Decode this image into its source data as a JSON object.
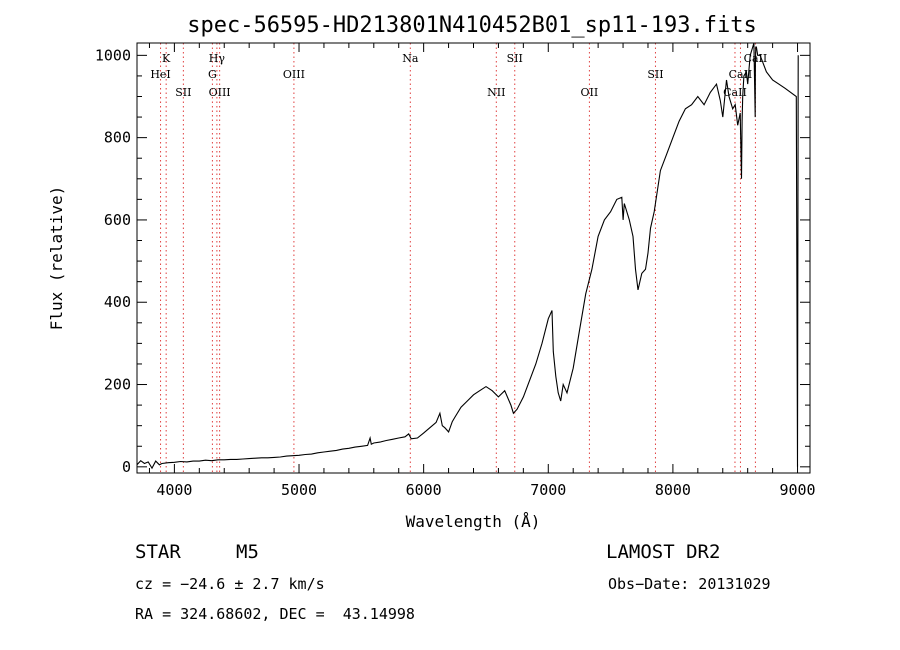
{
  "chart_data": {
    "type": "line",
    "title": "spec-56595-HD213801N410452B01_sp11-193.fits",
    "xlabel": "Wavelength (Å)",
    "ylabel": "Flux (relative)",
    "xlim": [
      3700,
      9100
    ],
    "ylim": [
      -15,
      1030
    ],
    "xticks": [
      4000,
      5000,
      6000,
      7000,
      8000,
      9000
    ],
    "yticks": [
      0,
      200,
      400,
      600,
      800,
      1000
    ],
    "grid": false,
    "line_color": "#000000",
    "marker_color": "#e04040",
    "series": [
      {
        "x": [
          3700,
          3730,
          3760,
          3790,
          3820,
          3850,
          3880,
          3900,
          3950,
          4000,
          4050,
          4100,
          4150,
          4200,
          4250,
          4300,
          4350,
          4400,
          4450,
          4500,
          4550,
          4600,
          4650,
          4700,
          4750,
          4800,
          4850,
          4900,
          4950,
          5000,
          5050,
          5100,
          5150,
          5200,
          5250,
          5300,
          5350,
          5400,
          5450,
          5500,
          5550,
          5570,
          5580,
          5600,
          5650,
          5700,
          5750,
          5800,
          5850,
          5880,
          5900,
          5950,
          6000,
          6050,
          6100,
          6130,
          6150,
          6170,
          6200,
          6230,
          6250,
          6300,
          6350,
          6400,
          6450,
          6500,
          6550,
          6600,
          6650,
          6700,
          6720,
          6750,
          6800,
          6850,
          6900,
          6950,
          7000,
          7030,
          7040,
          7060,
          7080,
          7100,
          7120,
          7150,
          7200,
          7250,
          7300,
          7350,
          7400,
          7450,
          7500,
          7550,
          7590,
          7600,
          7610,
          7650,
          7680,
          7700,
          7720,
          7750,
          7780,
          7800,
          7820,
          7850,
          7900,
          7950,
          8000,
          8050,
          8100,
          8150,
          8200,
          8250,
          8300,
          8350,
          8380,
          8400,
          8430,
          8450,
          8480,
          8500,
          8520,
          8540,
          8550,
          8555,
          8560,
          8570,
          8590,
          8600,
          8620,
          8640,
          8650,
          8660,
          8662,
          8665,
          8670,
          8680,
          8700,
          8750,
          8800,
          8850,
          8900,
          8990,
          9000,
          9005
        ],
        "y": [
          5,
          15,
          8,
          12,
          -3,
          14,
          5,
          8,
          10,
          11,
          13,
          12,
          14,
          14,
          16,
          15,
          17,
          17,
          18,
          18,
          19,
          20,
          21,
          22,
          22,
          23,
          24,
          26,
          27,
          28,
          30,
          31,
          34,
          36,
          38,
          40,
          43,
          45,
          48,
          50,
          52,
          70,
          55,
          58,
          60,
          64,
          67,
          70,
          73,
          80,
          68,
          70,
          82,
          95,
          108,
          130,
          100,
          95,
          85,
          110,
          120,
          145,
          160,
          175,
          185,
          195,
          185,
          170,
          185,
          150,
          130,
          140,
          170,
          210,
          250,
          300,
          360,
          380,
          280,
          220,
          180,
          160,
          200,
          180,
          240,
          330,
          420,
          480,
          560,
          600,
          620,
          650,
          655,
          600,
          640,
          600,
          560,
          480,
          430,
          470,
          480,
          520,
          580,
          620,
          720,
          760,
          800,
          840,
          870,
          880,
          900,
          880,
          910,
          930,
          890,
          850,
          940,
          900,
          870,
          880,
          830,
          860,
          700,
          840,
          900,
          950,
          960,
          930,
          1000,
          1020,
          1030,
          850,
          980,
          1020,
          1020,
          1000,
          1000,
          960,
          940,
          930,
          920,
          900,
          0,
          1000
        ]
      }
    ],
    "lines": [
      {
        "name": "K",
        "x": 3934,
        "row": 1
      },
      {
        "name": "HeI",
        "x": 3889,
        "row": 2
      },
      {
        "name": "SII",
        "x": 4072,
        "row": 3
      },
      {
        "name": "Hγ",
        "x": 4341,
        "row": 1
      },
      {
        "name": "G",
        "x": 4305,
        "row": 2
      },
      {
        "name": "OIII",
        "x": 4363,
        "row": 3
      },
      {
        "name": "OIII",
        "x": 4959,
        "row": 2
      },
      {
        "name": "Na",
        "x": 5893,
        "row": 1
      },
      {
        "name": "NII",
        "x": 6583,
        "row": 3
      },
      {
        "name": "SII",
        "x": 6731,
        "row": 1
      },
      {
        "name": "OII",
        "x": 7330,
        "row": 3
      },
      {
        "name": "SII",
        "x": 7860,
        "row": 2
      },
      {
        "name": "CaII",
        "x": 8498,
        "row": 3
      },
      {
        "name": "CaII",
        "x": 8542,
        "row": 2
      },
      {
        "name": "CaII",
        "x": 8662,
        "row": 1
      }
    ]
  },
  "info": {
    "class_label": "STAR",
    "subclass": "M5",
    "survey": "LAMOST DR2",
    "cz": "cz = −24.6 ± 2.7 km/s",
    "obs_date": "Obs−Date: 20131029",
    "coords": "RA = 324.68602, DEC =  43.14998"
  }
}
